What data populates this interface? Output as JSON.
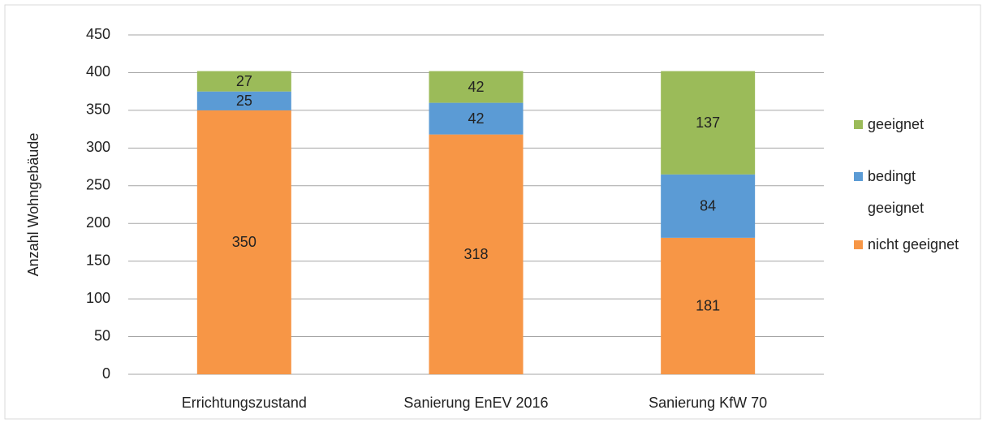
{
  "chart_data": {
    "type": "stacked_bar",
    "y_label": "Anzahl Wohngebäude",
    "categories": [
      "Errichtungszustand",
      "Sanierung EnEV 2016",
      "Sanierung KfW 70"
    ],
    "series": [
      {
        "name": "nicht geeignet",
        "color": "#f79646",
        "values": [
          350,
          318,
          181
        ]
      },
      {
        "name": "bedingt geeignet",
        "color": "#5b9bd5",
        "values": [
          25,
          42,
          84
        ]
      },
      {
        "name": "geeignet",
        "color": "#9bbb59",
        "values": [
          27,
          42,
          137
        ]
      }
    ],
    "ylim": [
      0,
      450
    ],
    "yticks": [
      0,
      50,
      100,
      150,
      200,
      250,
      300,
      350,
      400,
      450
    ],
    "grid": true
  }
}
